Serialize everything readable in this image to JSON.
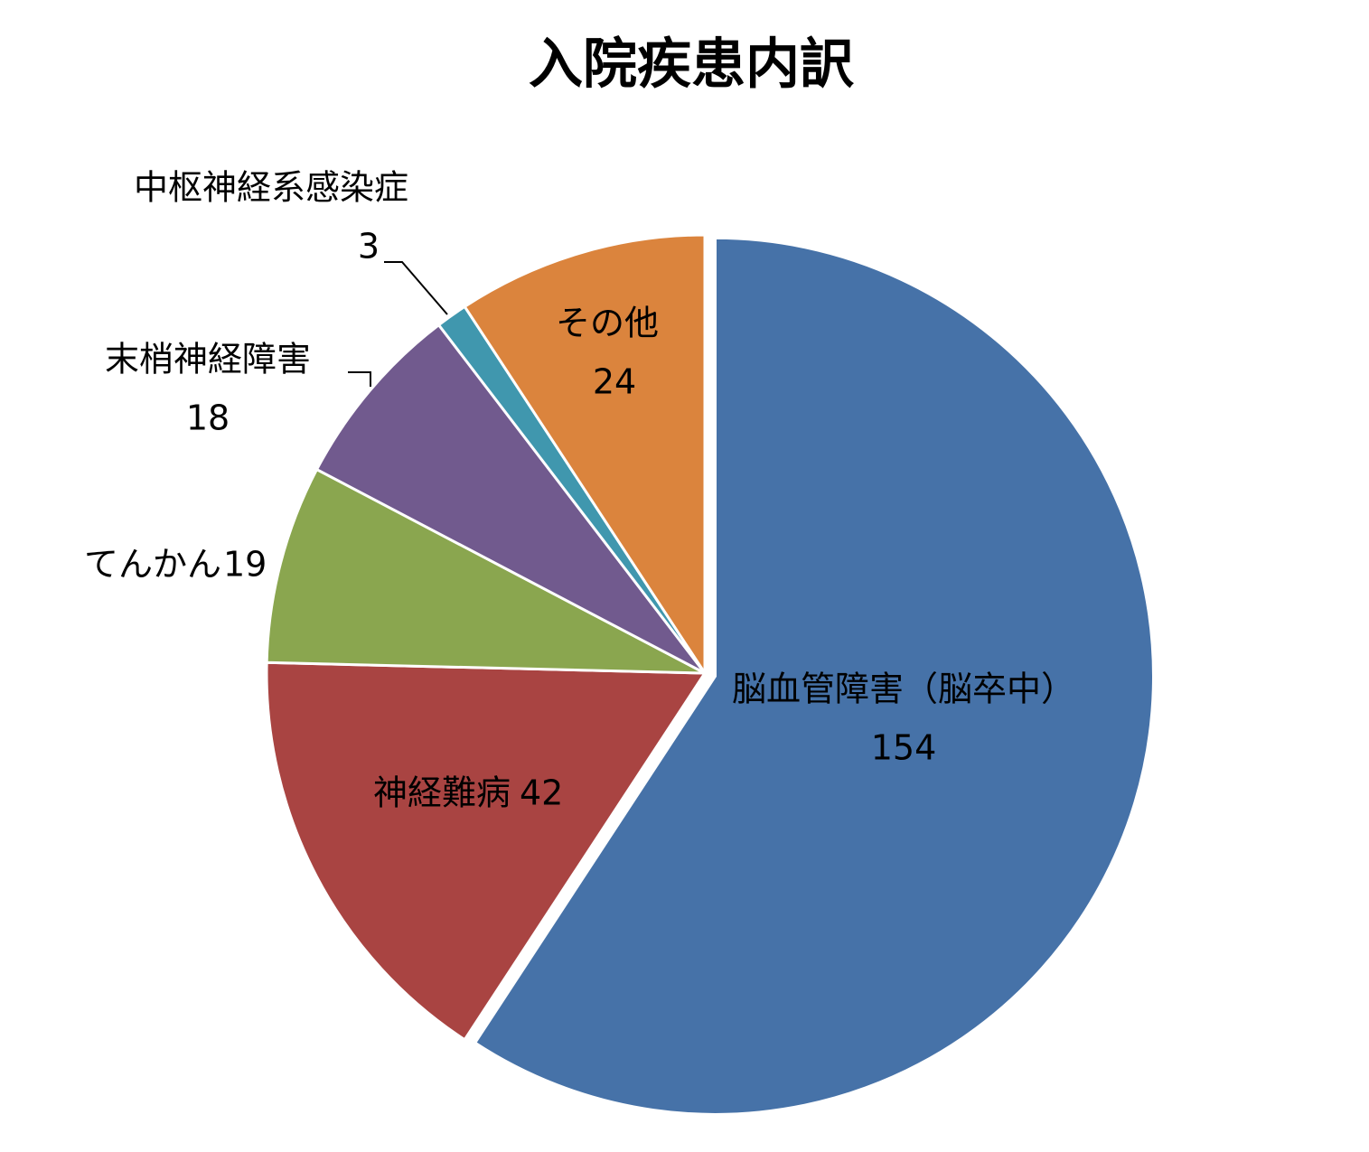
{
  "chart_data": {
    "type": "pie",
    "title": "入院疾患内訳",
    "categories": [
      "脳血管障害（脳卒中）",
      "神経難病",
      "てんかん",
      "末梢神経障害",
      "中枢神経系感染症",
      "その他"
    ],
    "values": [
      154,
      42,
      19,
      18,
      3,
      24
    ],
    "colors": [
      "#4672a8",
      "#a94442",
      "#8aa64f",
      "#715a8e",
      "#4097ae",
      "#db843d"
    ]
  }
}
